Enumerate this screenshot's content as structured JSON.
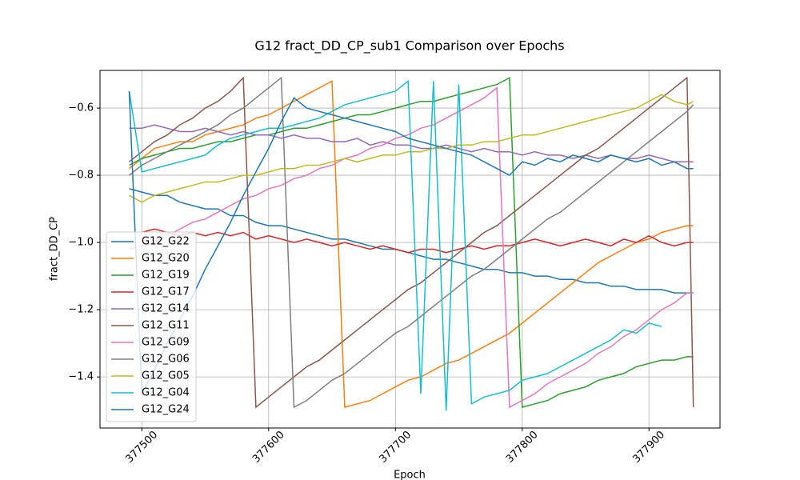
{
  "chart_data": {
    "type": "line",
    "title": "G12 fract_DD_CP_sub1 Comparison over Epochs",
    "x_label": "Epoch",
    "y_label": "fract_DD_CP",
    "xlim": [
      377467,
      377956
    ],
    "ylim": [
      -1.552,
      -0.488
    ],
    "xticks": [
      377500,
      377600,
      377700,
      377800,
      377900
    ],
    "yticks": [
      {
        "value": -1.4,
        "label": "−1.4"
      },
      {
        "value": -1.2,
        "label": "−1.2"
      },
      {
        "value": -1.0,
        "label": "−1.0"
      },
      {
        "value": -0.8,
        "label": "−0.8"
      },
      {
        "value": -0.6,
        "label": "−0.6"
      }
    ],
    "grid": true,
    "legend": "lower left",
    "x": [
      377490,
      377500,
      377510,
      377520,
      377530,
      377540,
      377550,
      377560,
      377570,
      377580,
      377590,
      377600,
      377610,
      377620,
      377630,
      377640,
      377650,
      377660,
      377670,
      377680,
      377690,
      377700,
      377710,
      377720,
      377730,
      377740,
      377750,
      377760,
      377770,
      377780,
      377790,
      377800,
      377810,
      377820,
      377830,
      377840,
      377850,
      377860,
      377870,
      377880,
      377890,
      377900,
      377910,
      377920,
      377930,
      377935
    ],
    "series": [
      {
        "name": "G12_G22",
        "color": "#1f77b4",
        "values": [
          -0.84,
          -0.85,
          -0.86,
          -0.86,
          -0.88,
          -0.89,
          -0.9,
          -0.9,
          -0.92,
          -0.92,
          -0.94,
          -0.95,
          -0.95,
          -0.96,
          -0.97,
          -0.98,
          -0.99,
          -0.99,
          -1.0,
          -1.01,
          -1.02,
          -1.02,
          -1.03,
          -1.04,
          -1.05,
          -1.05,
          -1.06,
          -1.07,
          -1.08,
          -1.08,
          -1.09,
          -1.09,
          -1.1,
          -1.1,
          -1.11,
          -1.11,
          -1.12,
          -1.12,
          -1.13,
          -1.13,
          -1.14,
          -1.14,
          -1.14,
          -1.15,
          -1.15,
          -1.15
        ]
      },
      {
        "name": "G12_G20",
        "color": "#ff7f0e",
        "values": [
          -0.78,
          -0.75,
          -0.72,
          -0.71,
          -0.7,
          -0.7,
          -0.68,
          -0.67,
          -0.66,
          -0.65,
          -0.63,
          -0.62,
          -0.6,
          -0.58,
          -0.56,
          -0.54,
          -0.52,
          -1.49,
          -1.48,
          -1.47,
          -1.45,
          -1.43,
          -1.41,
          -1.4,
          -1.38,
          -1.36,
          -1.35,
          -1.33,
          -1.31,
          -1.29,
          -1.27,
          -1.24,
          -1.21,
          -1.18,
          -1.15,
          -1.12,
          -1.09,
          -1.06,
          -1.04,
          -1.02,
          -1.0,
          -0.99,
          -0.97,
          -0.96,
          -0.95,
          -0.95
        ]
      },
      {
        "name": "G12_G19",
        "color": "#2ca02c",
        "values": [
          -0.77,
          -0.75,
          -0.74,
          -0.73,
          -0.72,
          -0.72,
          -0.71,
          -0.7,
          -0.7,
          -0.69,
          -0.68,
          -0.68,
          -0.67,
          -0.66,
          -0.66,
          -0.65,
          -0.64,
          -0.63,
          -0.62,
          -0.62,
          -0.61,
          -0.6,
          -0.59,
          -0.58,
          -0.58,
          -0.57,
          -0.56,
          -0.55,
          -0.54,
          -0.53,
          -0.51,
          -1.49,
          -1.48,
          -1.47,
          -1.45,
          -1.44,
          -1.43,
          -1.41,
          -1.4,
          -1.39,
          -1.37,
          -1.36,
          -1.35,
          -1.35,
          -1.34,
          -1.34
        ]
      },
      {
        "name": "G12_G17",
        "color": "#d62728",
        "values": [
          null,
          -0.97,
          -0.96,
          -0.97,
          -0.98,
          -0.97,
          -0.98,
          -0.97,
          -0.98,
          -0.97,
          -0.99,
          -0.98,
          -0.99,
          -1.0,
          -0.99,
          -1.0,
          -1.01,
          -1.0,
          -1.01,
          -1.02,
          -1.01,
          -1.02,
          -1.03,
          -1.02,
          -1.02,
          -1.03,
          -1.02,
          -1.01,
          -1.02,
          -1.01,
          -1.01,
          -1.0,
          -0.99,
          -1.0,
          -1.01,
          -1.0,
          -0.99,
          -1.0,
          -1.01,
          -0.99,
          -1.0,
          -0.98,
          -1.0,
          -1.01,
          -1.0,
          -1.0
        ]
      },
      {
        "name": "G12_G14",
        "color": "#9467bd",
        "values": [
          -0.66,
          -0.66,
          -0.65,
          -0.66,
          -0.67,
          -0.67,
          -0.66,
          -0.67,
          -0.68,
          -0.67,
          -0.68,
          -0.68,
          -0.69,
          -0.68,
          -0.69,
          -0.69,
          -0.7,
          -0.7,
          -0.69,
          -0.71,
          -0.7,
          -0.71,
          -0.71,
          -0.72,
          -0.72,
          -0.71,
          -0.72,
          -0.73,
          -0.72,
          -0.73,
          -0.73,
          -0.74,
          -0.73,
          -0.74,
          -0.74,
          -0.75,
          -0.74,
          -0.75,
          -0.74,
          -0.75,
          -0.75,
          -0.74,
          -0.75,
          -0.76,
          -0.76,
          -0.76
        ]
      },
      {
        "name": "G12_G11",
        "color": "#8c564b",
        "values": [
          -0.76,
          -0.73,
          -0.7,
          -0.68,
          -0.65,
          -0.63,
          -0.6,
          -0.58,
          -0.55,
          -0.51,
          -1.49,
          -1.46,
          -1.43,
          -1.4,
          -1.37,
          -1.35,
          -1.32,
          -1.29,
          -1.26,
          -1.23,
          -1.2,
          -1.17,
          -1.14,
          -1.12,
          -1.09,
          -1.06,
          -1.03,
          -1.0,
          -0.97,
          -0.95,
          -0.92,
          -0.89,
          -0.86,
          -0.83,
          -0.8,
          -0.77,
          -0.74,
          -0.72,
          -0.69,
          -0.66,
          -0.63,
          -0.6,
          -0.57,
          -0.54,
          -0.51,
          -1.49
        ]
      },
      {
        "name": "G12_G09",
        "color": "#e377c2",
        "values": [
          -1.02,
          -1.01,
          -1.0,
          -0.98,
          -0.96,
          -0.94,
          -0.93,
          -0.91,
          -0.89,
          -0.87,
          -0.86,
          -0.84,
          -0.83,
          -0.81,
          -0.8,
          -0.78,
          -0.77,
          -0.75,
          -0.74,
          -0.72,
          -0.71,
          -0.69,
          -0.68,
          -0.66,
          -0.65,
          -0.63,
          -0.61,
          -0.59,
          -0.57,
          -0.54,
          -1.49,
          -1.47,
          -1.45,
          -1.42,
          -1.4,
          -1.38,
          -1.36,
          -1.33,
          -1.31,
          -1.28,
          -1.26,
          -1.23,
          -1.2,
          -1.18,
          -1.15,
          -1.15
        ]
      },
      {
        "name": "G12_G06",
        "color": "#7f7f7f",
        "values": [
          -0.8,
          -0.77,
          -0.75,
          -0.73,
          -0.71,
          -0.69,
          -0.67,
          -0.65,
          -0.62,
          -0.6,
          -0.57,
          -0.54,
          -0.51,
          -1.49,
          -1.47,
          -1.44,
          -1.41,
          -1.39,
          -1.36,
          -1.33,
          -1.3,
          -1.27,
          -1.25,
          -1.22,
          -1.19,
          -1.16,
          -1.13,
          -1.1,
          -1.08,
          -1.05,
          -1.02,
          -0.99,
          -0.96,
          -0.93,
          -0.91,
          -0.88,
          -0.85,
          -0.82,
          -0.79,
          -0.76,
          -0.73,
          -0.7,
          -0.67,
          -0.64,
          -0.61,
          -0.59
        ]
      },
      {
        "name": "G12_G05",
        "color": "#bcbd22",
        "values": [
          -0.86,
          -0.88,
          -0.86,
          -0.85,
          -0.84,
          -0.83,
          -0.82,
          -0.82,
          -0.81,
          -0.8,
          -0.8,
          -0.79,
          -0.78,
          -0.78,
          -0.77,
          -0.77,
          -0.76,
          -0.75,
          -0.76,
          -0.75,
          -0.74,
          -0.74,
          -0.73,
          -0.73,
          -0.72,
          -0.72,
          -0.71,
          -0.71,
          -0.7,
          -0.7,
          -0.69,
          -0.68,
          -0.68,
          -0.67,
          -0.66,
          -0.65,
          -0.64,
          -0.63,
          -0.62,
          -0.61,
          -0.6,
          -0.58,
          -0.56,
          -0.58,
          -0.59,
          -0.58
        ]
      },
      {
        "name": "G12_G04",
        "color": "#17becf",
        "values": [
          -0.55,
          -0.79,
          -0.78,
          -0.77,
          -0.76,
          -0.75,
          -0.74,
          -0.71,
          -0.69,
          -0.68,
          -0.67,
          -0.66,
          -0.66,
          -0.65,
          -0.64,
          -0.63,
          -0.61,
          -0.59,
          -0.58,
          -0.57,
          -0.56,
          -0.55,
          -0.52,
          -1.45,
          -0.52,
          -1.5,
          -0.53,
          -1.48,
          -1.46,
          -1.45,
          -1.44,
          -1.41,
          -1.4,
          -1.39,
          -1.37,
          -1.35,
          -1.33,
          -1.31,
          -1.29,
          -1.26,
          -1.27,
          -1.24,
          -1.25,
          null,
          null,
          null
        ]
      },
      {
        "name": "G12_G24",
        "color": "#1f77b4",
        "values": [
          -0.55,
          -1.45,
          -1.38,
          -1.3,
          -1.23,
          -1.16,
          -1.08,
          -1.01,
          -0.94,
          -0.86,
          -0.79,
          -0.72,
          -0.64,
          -0.57,
          -0.6,
          -0.61,
          -0.62,
          -0.63,
          -0.64,
          -0.65,
          -0.66,
          -0.67,
          -0.69,
          -0.7,
          -0.71,
          -0.72,
          -0.73,
          -0.74,
          -0.76,
          -0.78,
          -0.8,
          -0.76,
          -0.77,
          -0.75,
          -0.76,
          -0.74,
          -0.75,
          -0.76,
          -0.74,
          -0.75,
          -0.76,
          -0.75,
          -0.77,
          -0.76,
          -0.78,
          -0.78
        ]
      }
    ]
  }
}
